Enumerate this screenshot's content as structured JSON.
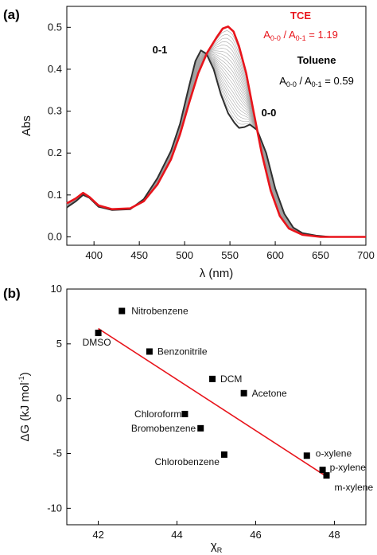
{
  "chart_data": [
    {
      "type": "line",
      "panel_label": "(a)",
      "xlabel": "λ (nm)",
      "ylabel": "Abs",
      "xlim": [
        370,
        700
      ],
      "ylim": [
        -0.02,
        0.55
      ],
      "x_ticks": [
        "400",
        "450",
        "500",
        "550",
        "600",
        "650",
        "700"
      ],
      "y_ticks": [
        "0.0",
        "0.1",
        "0.2",
        "0.3",
        "0.4",
        "0.5"
      ],
      "series": [
        {
          "name": "Toluene",
          "color": "#2f2f2f",
          "points": [
            [
              370,
              0.07
            ],
            [
              380,
              0.085
            ],
            [
              388,
              0.1
            ],
            [
              395,
              0.093
            ],
            [
              405,
              0.072
            ],
            [
              420,
              0.064
            ],
            [
              440,
              0.066
            ],
            [
              455,
              0.09
            ],
            [
              470,
              0.14
            ],
            [
              485,
              0.205
            ],
            [
              495,
              0.27
            ],
            [
              505,
              0.36
            ],
            [
              512,
              0.42
            ],
            [
              518,
              0.445
            ],
            [
              524,
              0.437
            ],
            [
              532,
              0.4
            ],
            [
              540,
              0.34
            ],
            [
              548,
              0.295
            ],
            [
              555,
              0.272
            ],
            [
              560,
              0.26
            ],
            [
              566,
              0.262
            ],
            [
              572,
              0.268
            ],
            [
              580,
              0.255
            ],
            [
              590,
              0.2
            ],
            [
              600,
              0.115
            ],
            [
              610,
              0.055
            ],
            [
              620,
              0.022
            ],
            [
              630,
              0.009
            ],
            [
              645,
              0.003
            ],
            [
              660,
              0.0
            ],
            [
              700,
              0.0
            ]
          ]
        },
        {
          "name": "TCE",
          "color": "#e8141b",
          "points": [
            [
              370,
              0.08
            ],
            [
              380,
              0.092
            ],
            [
              388,
              0.105
            ],
            [
              395,
              0.095
            ],
            [
              405,
              0.075
            ],
            [
              420,
              0.066
            ],
            [
              440,
              0.068
            ],
            [
              455,
              0.085
            ],
            [
              470,
              0.125
            ],
            [
              485,
              0.185
            ],
            [
              495,
              0.245
            ],
            [
              505,
              0.32
            ],
            [
              515,
              0.39
            ],
            [
              525,
              0.44
            ],
            [
              535,
              0.475
            ],
            [
              542,
              0.497
            ],
            [
              548,
              0.502
            ],
            [
              554,
              0.49
            ],
            [
              560,
              0.455
            ],
            [
              568,
              0.39
            ],
            [
              576,
              0.3
            ],
            [
              585,
              0.2
            ],
            [
              595,
              0.11
            ],
            [
              605,
              0.05
            ],
            [
              615,
              0.02
            ],
            [
              630,
              0.005
            ],
            [
              650,
              0.0
            ],
            [
              700,
              0.0
            ]
          ]
        }
      ],
      "annotations": {
        "peak_01": "0-1",
        "peak_00": "0-0",
        "tce_name": "TCE",
        "tce_ratio_base": "A",
        "tce_ratio_sub1": "0-0",
        "tce_ratio_sep": " / A",
        "tce_ratio_sub2": "0-1",
        "tce_ratio_value": " = 1.19",
        "tol_name": "Toluene",
        "tol_ratio_base": "A",
        "tol_ratio_sub1": "0-0",
        "tol_ratio_sep": " / A",
        "tol_ratio_sub2": "0-1",
        "tol_ratio_value": " = 0.59"
      }
    },
    {
      "type": "scatter",
      "panel_label": "(b)",
      "xlabel_base": "χ",
      "xlabel_sub": "R",
      "ylabel_base": "ΔG (kJ mol",
      "ylabel_sup": "-1",
      "ylabel_end": ")",
      "xlim": [
        41.2,
        48.8
      ],
      "ylim": [
        -11.5,
        10
      ],
      "x_ticks": [
        "42",
        "44",
        "46",
        "48"
      ],
      "y_ticks": [
        "10",
        "5",
        "0",
        "-5",
        "-10"
      ],
      "points": [
        {
          "label": "Nitrobenzene",
          "x": 42.6,
          "y": 8.0
        },
        {
          "label": "DMSO",
          "x": 42.0,
          "y": 6.0
        },
        {
          "label": "Benzonitrile",
          "x": 43.3,
          "y": 4.3
        },
        {
          "label": "DCM",
          "x": 44.9,
          "y": 1.8
        },
        {
          "label": "Acetone",
          "x": 45.7,
          "y": 0.5
        },
        {
          "label": "Chloroform",
          "x": 44.2,
          "y": -1.4
        },
        {
          "label": "Bromobenzene",
          "x": 44.6,
          "y": -2.7
        },
        {
          "label": "Chlorobenzene",
          "x": 45.2,
          "y": -5.1
        },
        {
          "label": "o-xylene",
          "x": 47.3,
          "y": -5.2
        },
        {
          "label": "p-xylene",
          "x": 47.7,
          "y": -6.5
        },
        {
          "label": "m-xylene",
          "x": 47.8,
          "y": -7.0
        }
      ],
      "fit_line": {
        "color": "#e8141b",
        "x": [
          42.0,
          47.8
        ],
        "y": [
          6.4,
          -7.1
        ]
      }
    }
  ]
}
